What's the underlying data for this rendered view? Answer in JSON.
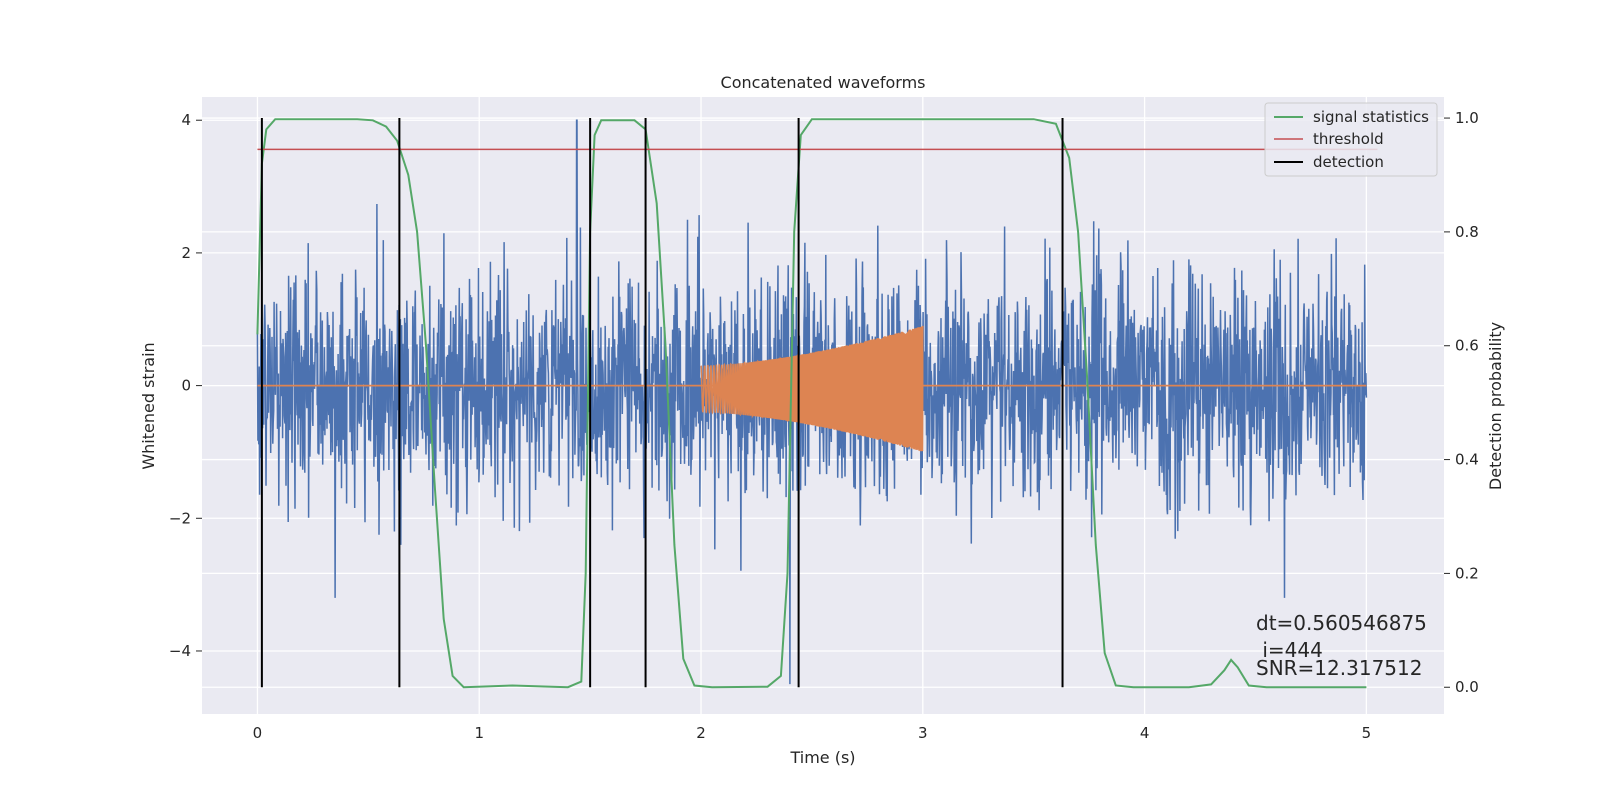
{
  "chart_data": {
    "type": "line",
    "title": "Concatenated waveforms",
    "xlabel": "Time (s)",
    "ylabel_left": "Whitened strain",
    "ylabel_right": "Detection probability",
    "xlim": [
      -0.25,
      5.35
    ],
    "ylim_left": [
      -4.95,
      4.35
    ],
    "ylim_right": [
      -0.047,
      1.037
    ],
    "x_ticks": [
      0,
      1,
      2,
      3,
      4,
      5
    ],
    "x_tick_labels": [
      "0",
      "1",
      "2",
      "3",
      "4",
      "5"
    ],
    "y_left_ticks": [
      -4,
      -2,
      0,
      2,
      4
    ],
    "y_left_tick_labels": [
      "−4",
      "−2",
      "0",
      "2",
      "4"
    ],
    "y_right_ticks": [
      0.0,
      0.2,
      0.4,
      0.6,
      0.8,
      1.0
    ],
    "y_right_tick_labels": [
      "0.0",
      "0.2",
      "0.4",
      "0.6",
      "0.8",
      "1.0"
    ],
    "grid": true,
    "legend_placement": "upper right",
    "colors": {
      "background": "#eaeaf2",
      "grid": "#ffffff",
      "strain": "#4c72b0",
      "template": "#dd8452",
      "signal_statistics": "#55a868",
      "threshold": "#c44e52",
      "detection": "#000000"
    },
    "series": [
      {
        "name": "",
        "axis": "left",
        "kind": "noise",
        "x_range": [
          0,
          5
        ],
        "std": 0.85,
        "extremes": [
          {
            "x": 1.44,
            "y": 4.0
          },
          {
            "x": 2.4,
            "y": -4.5
          },
          {
            "x": 0.35,
            "y": -3.2
          },
          {
            "x": 4.63,
            "y": -3.2
          }
        ]
      },
      {
        "name": "",
        "axis": "left",
        "kind": "chirp",
        "x_range": [
          2.0,
          3.0
        ],
        "amplitude_start": 0.35,
        "amplitude_end": 0.95,
        "center": -0.05
      },
      {
        "name": "signal statistics",
        "axis": "right",
        "points": [
          [
            0.0,
            0.62
          ],
          [
            0.02,
            0.92
          ],
          [
            0.04,
            0.98
          ],
          [
            0.08,
            0.998
          ],
          [
            0.2,
            0.998
          ],
          [
            0.45,
            0.998
          ],
          [
            0.52,
            0.996
          ],
          [
            0.58,
            0.985
          ],
          [
            0.63,
            0.96
          ],
          [
            0.68,
            0.9
          ],
          [
            0.72,
            0.8
          ],
          [
            0.76,
            0.6
          ],
          [
            0.8,
            0.35
          ],
          [
            0.84,
            0.12
          ],
          [
            0.88,
            0.02
          ],
          [
            0.93,
            0.0
          ],
          [
            1.15,
            0.003
          ],
          [
            1.4,
            0.0
          ],
          [
            1.46,
            0.01
          ],
          [
            1.48,
            0.2
          ],
          [
            1.5,
            0.8
          ],
          [
            1.52,
            0.97
          ],
          [
            1.55,
            0.996
          ],
          [
            1.7,
            0.996
          ],
          [
            1.75,
            0.98
          ],
          [
            1.8,
            0.85
          ],
          [
            1.84,
            0.6
          ],
          [
            1.88,
            0.25
          ],
          [
            1.92,
            0.05
          ],
          [
            1.97,
            0.003
          ],
          [
            2.05,
            0.0
          ],
          [
            2.3,
            0.001
          ],
          [
            2.36,
            0.02
          ],
          [
            2.39,
            0.2
          ],
          [
            2.42,
            0.8
          ],
          [
            2.45,
            0.97
          ],
          [
            2.5,
            0.998
          ],
          [
            3.5,
            0.998
          ],
          [
            3.6,
            0.99
          ],
          [
            3.66,
            0.93
          ],
          [
            3.7,
            0.8
          ],
          [
            3.74,
            0.55
          ],
          [
            3.78,
            0.25
          ],
          [
            3.82,
            0.06
          ],
          [
            3.87,
            0.003
          ],
          [
            3.95,
            0.0
          ],
          [
            4.2,
            0.0
          ],
          [
            4.3,
            0.005
          ],
          [
            4.36,
            0.03
          ],
          [
            4.39,
            0.048
          ],
          [
            4.42,
            0.035
          ],
          [
            4.47,
            0.003
          ],
          [
            4.55,
            0.0
          ],
          [
            5.0,
            0.0
          ]
        ]
      },
      {
        "name": "threshold",
        "axis": "right",
        "points": [
          [
            0.0,
            0.945
          ],
          [
            5.05,
            0.945
          ]
        ]
      },
      {
        "name": "detection",
        "axis": "right",
        "kind": "vlines",
        "x": [
          0.02,
          0.64,
          1.5,
          1.75,
          2.44,
          3.63
        ],
        "ymin": 0.0,
        "ymax": 1.0
      }
    ],
    "annotations": [
      "dt=0.560546875",
      " i=444",
      "SNR=12.317512"
    ]
  }
}
